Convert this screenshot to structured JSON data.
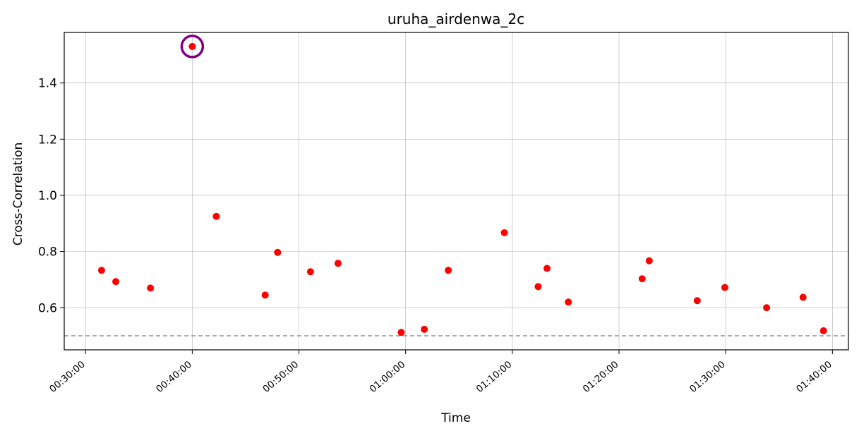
{
  "chart_data": {
    "type": "scatter",
    "title": "uruha_airdenwa_2c",
    "xlabel": "Time",
    "ylabel": "Cross-Correlation",
    "x_ticks": [
      "00:30:00",
      "00:40:00",
      "00:50:00",
      "01:00:00",
      "01:10:00",
      "01:20:00",
      "01:30:00",
      "01:40:00"
    ],
    "y_ticks": [
      "0.6",
      "0.8",
      "1.0",
      "1.2",
      "1.4"
    ],
    "xlim": [
      "00:28:00",
      "01:41:30"
    ],
    "ylim": [
      0.45,
      1.58
    ],
    "grid": true,
    "threshold": 0.5,
    "colors": {
      "points": "#ff0000",
      "highlight": "#800080",
      "threshold": "#808080",
      "grid": "#b0b0b0"
    },
    "highlight": {
      "x": "00:40:00",
      "y": 1.53
    },
    "points": [
      {
        "x": "00:31:30",
        "y": 0.733
      },
      {
        "x": "00:32:50",
        "y": 0.693
      },
      {
        "x": "00:36:05",
        "y": 0.67
      },
      {
        "x": "00:40:00",
        "y": 1.53
      },
      {
        "x": "00:42:15",
        "y": 0.925
      },
      {
        "x": "00:46:50",
        "y": 0.645
      },
      {
        "x": "00:48:00",
        "y": 0.797
      },
      {
        "x": "00:51:05",
        "y": 0.728
      },
      {
        "x": "00:53:40",
        "y": 0.758
      },
      {
        "x": "00:59:35",
        "y": 0.512
      },
      {
        "x": "01:01:45",
        "y": 0.523
      },
      {
        "x": "01:04:00",
        "y": 0.733
      },
      {
        "x": "01:09:15",
        "y": 0.867
      },
      {
        "x": "01:12:25",
        "y": 0.675
      },
      {
        "x": "01:13:15",
        "y": 0.74
      },
      {
        "x": "01:15:15",
        "y": 0.62
      },
      {
        "x": "01:22:10",
        "y": 0.703
      },
      {
        "x": "01:22:50",
        "y": 0.767
      },
      {
        "x": "01:27:20",
        "y": 0.625
      },
      {
        "x": "01:29:55",
        "y": 0.672
      },
      {
        "x": "01:33:50",
        "y": 0.6
      },
      {
        "x": "01:37:15",
        "y": 0.637
      },
      {
        "x": "01:39:10",
        "y": 0.518
      }
    ]
  }
}
